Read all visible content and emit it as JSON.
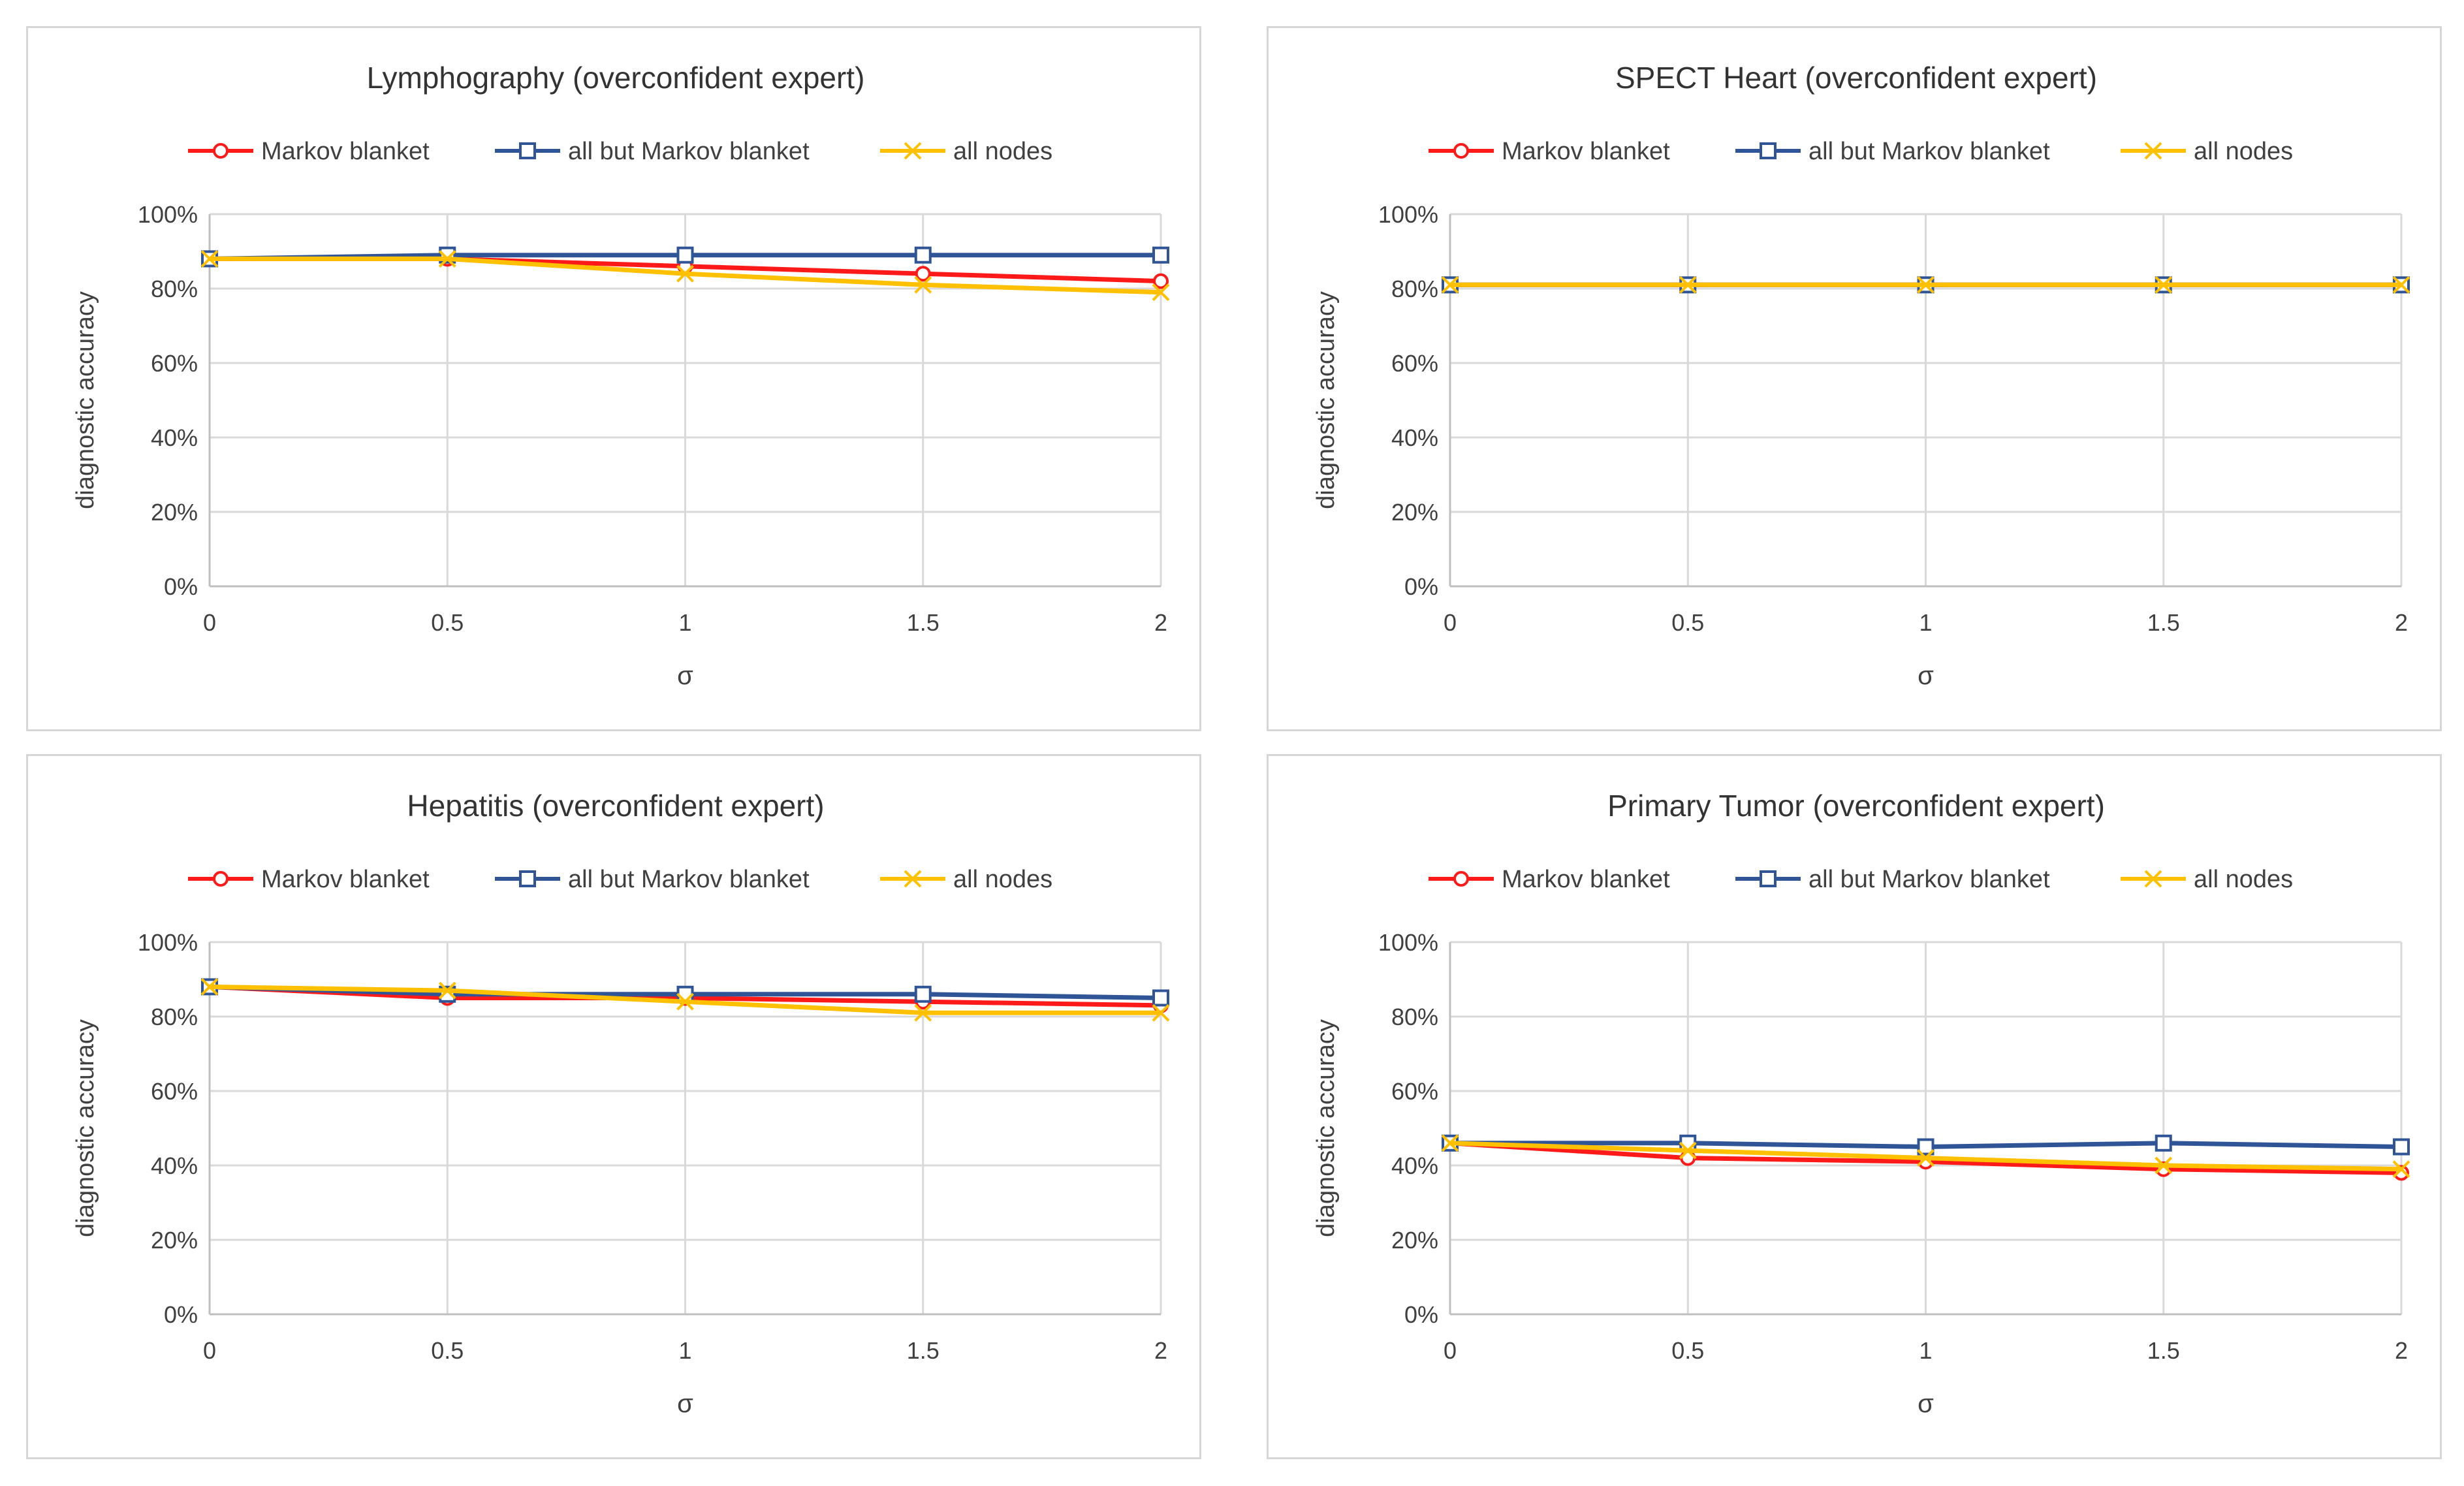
{
  "chart_data": [
    {
      "type": "line",
      "title": "Lymphography (overconfident expert)",
      "xlabel": "σ",
      "ylabel": "diagnostic accuracy",
      "categories": [
        "0",
        "0.5",
        "1",
        "1.5",
        "2"
      ],
      "x": [
        0,
        0.5,
        1,
        1.5,
        2
      ],
      "ylim": [
        0,
        100
      ],
      "yticks": [
        "0%",
        "20%",
        "40%",
        "60%",
        "80%",
        "100%"
      ],
      "grid": true,
      "legend": "top",
      "series": [
        {
          "name": "Markov blanket",
          "values": [
            88,
            88,
            86,
            84,
            82
          ]
        },
        {
          "name": "all but Markov blanket",
          "values": [
            88,
            89,
            89,
            89,
            89
          ]
        },
        {
          "name": "all nodes",
          "values": [
            88,
            88,
            84,
            81,
            79
          ]
        }
      ]
    },
    {
      "type": "line",
      "title": "SPECT Heart (overconfident expert)",
      "xlabel": "σ",
      "ylabel": "diagnostic accuracy",
      "categories": [
        "0",
        "0.5",
        "1",
        "1.5",
        "2"
      ],
      "x": [
        0,
        0.5,
        1,
        1.5,
        2
      ],
      "ylim": [
        0,
        100
      ],
      "yticks": [
        "0%",
        "20%",
        "40%",
        "60%",
        "80%",
        "100%"
      ],
      "grid": true,
      "legend": "top",
      "series": [
        {
          "name": "Markov blanket",
          "values": [
            81,
            81,
            81,
            81,
            81
          ]
        },
        {
          "name": "all but Markov blanket",
          "values": [
            81,
            81,
            81,
            81,
            81
          ]
        },
        {
          "name": "all nodes",
          "values": [
            81,
            81,
            81,
            81,
            81
          ]
        }
      ]
    },
    {
      "type": "line",
      "title": "Hepatitis (overconfident expert)",
      "xlabel": "σ",
      "ylabel": "diagnostic accuracy",
      "categories": [
        "0",
        "0.5",
        "1",
        "1.5",
        "2"
      ],
      "x": [
        0,
        0.5,
        1,
        1.5,
        2
      ],
      "ylim": [
        0,
        100
      ],
      "yticks": [
        "0%",
        "20%",
        "40%",
        "60%",
        "80%",
        "100%"
      ],
      "grid": true,
      "legend": "top",
      "series": [
        {
          "name": "Markov blanket",
          "values": [
            88,
            85,
            85,
            84,
            83
          ]
        },
        {
          "name": "all but Markov blanket",
          "values": [
            88,
            86,
            86,
            86,
            85
          ]
        },
        {
          "name": "all nodes",
          "values": [
            88,
            87,
            84,
            81,
            81
          ]
        }
      ]
    },
    {
      "type": "line",
      "title": "Primary Tumor (overconfident expert)",
      "xlabel": "σ",
      "ylabel": "diagnostic accuracy",
      "categories": [
        "0",
        "0.5",
        "1",
        "1.5",
        "2"
      ],
      "x": [
        0,
        0.5,
        1,
        1.5,
        2
      ],
      "ylim": [
        0,
        100
      ],
      "yticks": [
        "0%",
        "20%",
        "40%",
        "60%",
        "80%",
        "100%"
      ],
      "grid": true,
      "legend": "top",
      "series": [
        {
          "name": "Markov blanket",
          "values": [
            46,
            42,
            41,
            39,
            38
          ]
        },
        {
          "name": "all but Markov blanket",
          "values": [
            46,
            46,
            45,
            46,
            45
          ]
        },
        {
          "name": "all nodes",
          "values": [
            46,
            44,
            42,
            40,
            39
          ]
        }
      ]
    }
  ],
  "series_colors": [
    "#ff1a1a",
    "#2f5597",
    "#ffc000"
  ],
  "series_markers": [
    "circle",
    "square",
    "x"
  ]
}
